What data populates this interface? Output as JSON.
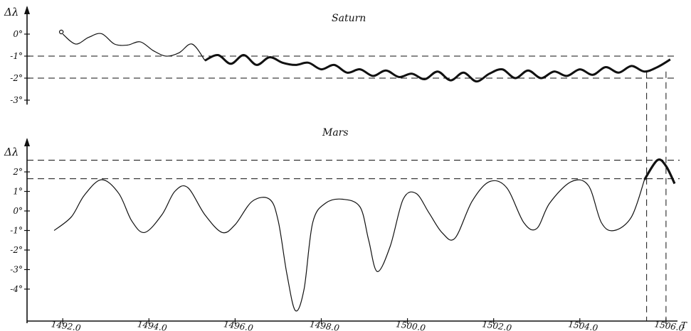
{
  "colors": {
    "ink": "#111111",
    "paper": "#ffffff"
  },
  "chart_data": [
    {
      "type": "line",
      "title": "Saturn",
      "ylabel": "Δλ",
      "xlabel": "",
      "y_ticks": [
        "0°",
        "-1°",
        "-2°",
        "-3°"
      ],
      "y_tick_values": [
        0,
        -1,
        -2,
        -3
      ],
      "ylim": [
        -3.2,
        0.9
      ],
      "reference_lines_y": [
        -1,
        -2
      ],
      "start_marker": "open circle",
      "series": [
        {
          "x": [
            1492.0,
            1492.3,
            1492.6,
            1492.9,
            1493.2,
            1493.5,
            1493.8,
            1494.1,
            1494.4,
            1494.7,
            1495.0,
            1495.3,
            1495.6,
            1495.9,
            1496.2,
            1496.5,
            1496.8,
            1497.1,
            1497.4,
            1497.7,
            1498.0,
            1498.3,
            1498.6,
            1498.9,
            1499.2,
            1499.5,
            1499.8,
            1500.1,
            1500.4,
            1500.7,
            1501.0,
            1501.3,
            1501.6,
            1501.9,
            1502.2,
            1502.5,
            1502.8,
            1503.1,
            1503.4,
            1503.7,
            1504.0,
            1504.3,
            1504.6,
            1504.9,
            1505.2,
            1505.5,
            1505.8,
            1506.1
          ],
          "values": [
            0.0,
            -0.45,
            -0.15,
            0.02,
            -0.45,
            -0.5,
            -0.35,
            -0.75,
            -1.0,
            -0.85,
            -0.45,
            -1.2,
            -0.95,
            -1.35,
            -0.95,
            -1.4,
            -1.05,
            -1.3,
            -1.4,
            -1.3,
            -1.6,
            -1.4,
            -1.75,
            -1.6,
            -1.9,
            -1.65,
            -1.95,
            -1.8,
            -2.05,
            -1.7,
            -2.1,
            -1.75,
            -2.15,
            -1.8,
            -1.6,
            -2.0,
            -1.65,
            -2.0,
            -1.7,
            -1.9,
            -1.6,
            -1.85,
            -1.5,
            -1.75,
            -1.45,
            -1.7,
            -1.5,
            -1.15
          ]
        }
      ]
    },
    {
      "type": "line",
      "title": "Mars",
      "ylabel": "Δλ",
      "xlabel": "T",
      "x_ticks": [
        "1492.0",
        "1494.0",
        "1496.0",
        "1498.0",
        "1500.0",
        "1502.0",
        "1504.0",
        "1506.0"
      ],
      "x_tick_values": [
        1492,
        1494,
        1496,
        1498,
        1500,
        1502,
        1504,
        1506
      ],
      "xlim": [
        1491.7,
        1506.2
      ],
      "y_ticks": [
        "2°",
        "1°",
        "0°",
        "-1°",
        "-2°",
        "-3°",
        "-4°"
      ],
      "y_tick_values": [
        2,
        1,
        0,
        -1,
        -2,
        -3,
        -4
      ],
      "ylim": [
        -5.1,
        3.1
      ],
      "reference_lines_y": [
        2.6,
        1.65
      ],
      "vertical_reference_x": [
        1505.55,
        1506.0
      ],
      "series": [
        {
          "x": [
            1491.8,
            1492.2,
            1492.5,
            1492.9,
            1493.3,
            1493.6,
            1493.9,
            1494.3,
            1494.6,
            1494.9,
            1495.3,
            1495.7,
            1496.0,
            1496.4,
            1496.8,
            1497.0,
            1497.2,
            1497.4,
            1497.6,
            1497.8,
            1498.1,
            1498.5,
            1498.9,
            1499.1,
            1499.3,
            1499.6,
            1499.9,
            1500.2,
            1500.5,
            1500.8,
            1501.1,
            1501.5,
            1501.9,
            1502.3,
            1502.7,
            1503.0,
            1503.3,
            1503.8,
            1504.2,
            1504.5,
            1504.8,
            1505.2,
            1505.5,
            1505.8,
            1506.0,
            1506.2
          ],
          "values": [
            -1.0,
            -0.3,
            0.8,
            1.6,
            0.9,
            -0.5,
            -1.1,
            -0.2,
            1.0,
            1.2,
            -0.2,
            -1.1,
            -0.7,
            0.5,
            0.6,
            -0.5,
            -3.2,
            -5.1,
            -4.0,
            -0.6,
            0.4,
            0.6,
            0.2,
            -1.5,
            -3.1,
            -1.8,
            0.6,
            0.9,
            -0.1,
            -1.1,
            -1.4,
            0.5,
            1.5,
            1.2,
            -0.6,
            -0.9,
            0.4,
            1.5,
            1.3,
            -0.6,
            -1.0,
            -0.3,
            1.6,
            2.6,
            2.3,
            1.4
          ]
        }
      ]
    }
  ]
}
